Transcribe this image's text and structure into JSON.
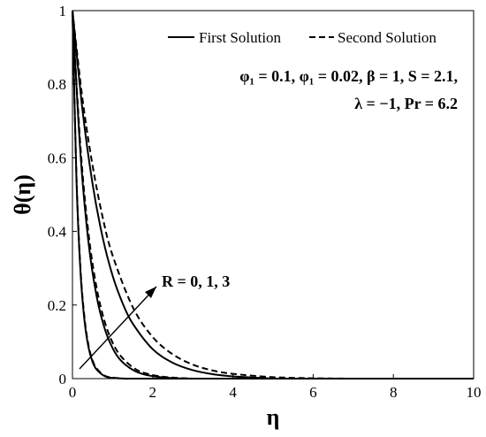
{
  "chart_data": {
    "type": "line",
    "xlabel": "η",
    "ylabel": "θ(η)",
    "xlim": [
      0,
      10
    ],
    "ylim": [
      0,
      1
    ],
    "x_ticks": [
      "0",
      "2",
      "4",
      "6",
      "8",
      "10"
    ],
    "y_ticks": [
      "0",
      "0.2",
      "0.4",
      "0.6",
      "0.8",
      "1"
    ],
    "grid": false,
    "legend_position": "top-right",
    "legend": [
      {
        "label": "First Solution",
        "style": "solid"
      },
      {
        "label": "Second Solution",
        "style": "dashed"
      }
    ],
    "annotations": {
      "params_line1": "φ₁ = 0.1, φ₁ = 0.02, β = 1, S = 2.1,",
      "params_line2": "λ = −1, Pr = 6.2",
      "arrow_label": "R = 0, 1, 3"
    },
    "series": [
      {
        "style": "solid",
        "x": [
          0,
          0.1,
          0.2,
          0.3,
          0.4,
          0.5,
          0.6,
          0.8,
          1.0,
          1.3,
          1.6,
          2.0
        ],
        "values": [
          1.0,
          0.54,
          0.29,
          0.157,
          0.085,
          0.046,
          0.025,
          0.007,
          0.002,
          0.0,
          0.0,
          0.0
        ]
      },
      {
        "style": "solid",
        "x": [
          0,
          0.2,
          0.4,
          0.6,
          0.8,
          1.0,
          1.2,
          1.5,
          1.8,
          2.2,
          2.6,
          3.0
        ],
        "values": [
          1.0,
          0.61,
          0.37,
          0.225,
          0.137,
          0.083,
          0.05,
          0.024,
          0.011,
          0.004,
          0.001,
          0.0
        ]
      },
      {
        "style": "solid",
        "x": [
          0,
          0.25,
          0.5,
          0.75,
          1.0,
          1.25,
          1.5,
          2.0,
          2.5,
          3.0,
          3.5,
          4.0,
          4.5,
          5.0
        ],
        "values": [
          1.0,
          0.73,
          0.53,
          0.385,
          0.28,
          0.205,
          0.15,
          0.08,
          0.043,
          0.023,
          0.012,
          0.006,
          0.003,
          0.0
        ]
      },
      {
        "style": "dashed",
        "x": [
          0,
          0.1,
          0.2,
          0.3,
          0.4,
          0.5,
          0.6,
          0.8,
          1.0,
          1.3,
          1.6,
          2.0
        ],
        "values": [
          1.0,
          0.55,
          0.3,
          0.166,
          0.091,
          0.05,
          0.028,
          0.008,
          0.003,
          0.0,
          0.0,
          0.0
        ]
      },
      {
        "style": "dashed",
        "x": [
          0,
          0.2,
          0.4,
          0.6,
          0.8,
          1.0,
          1.2,
          1.5,
          1.8,
          2.2,
          2.6,
          3.0
        ],
        "values": [
          1.0,
          0.63,
          0.395,
          0.248,
          0.156,
          0.098,
          0.062,
          0.031,
          0.015,
          0.006,
          0.002,
          0.0
        ]
      },
      {
        "style": "dashed",
        "x": [
          0,
          0.25,
          0.5,
          0.75,
          1.0,
          1.5,
          2.0,
          2.5,
          3.0,
          3.5,
          4.0,
          5.0,
          6.0,
          7.0
        ],
        "values": [
          1.0,
          0.76,
          0.58,
          0.44,
          0.335,
          0.195,
          0.113,
          0.066,
          0.038,
          0.022,
          0.013,
          0.004,
          0.001,
          0.0
        ]
      }
    ]
  }
}
